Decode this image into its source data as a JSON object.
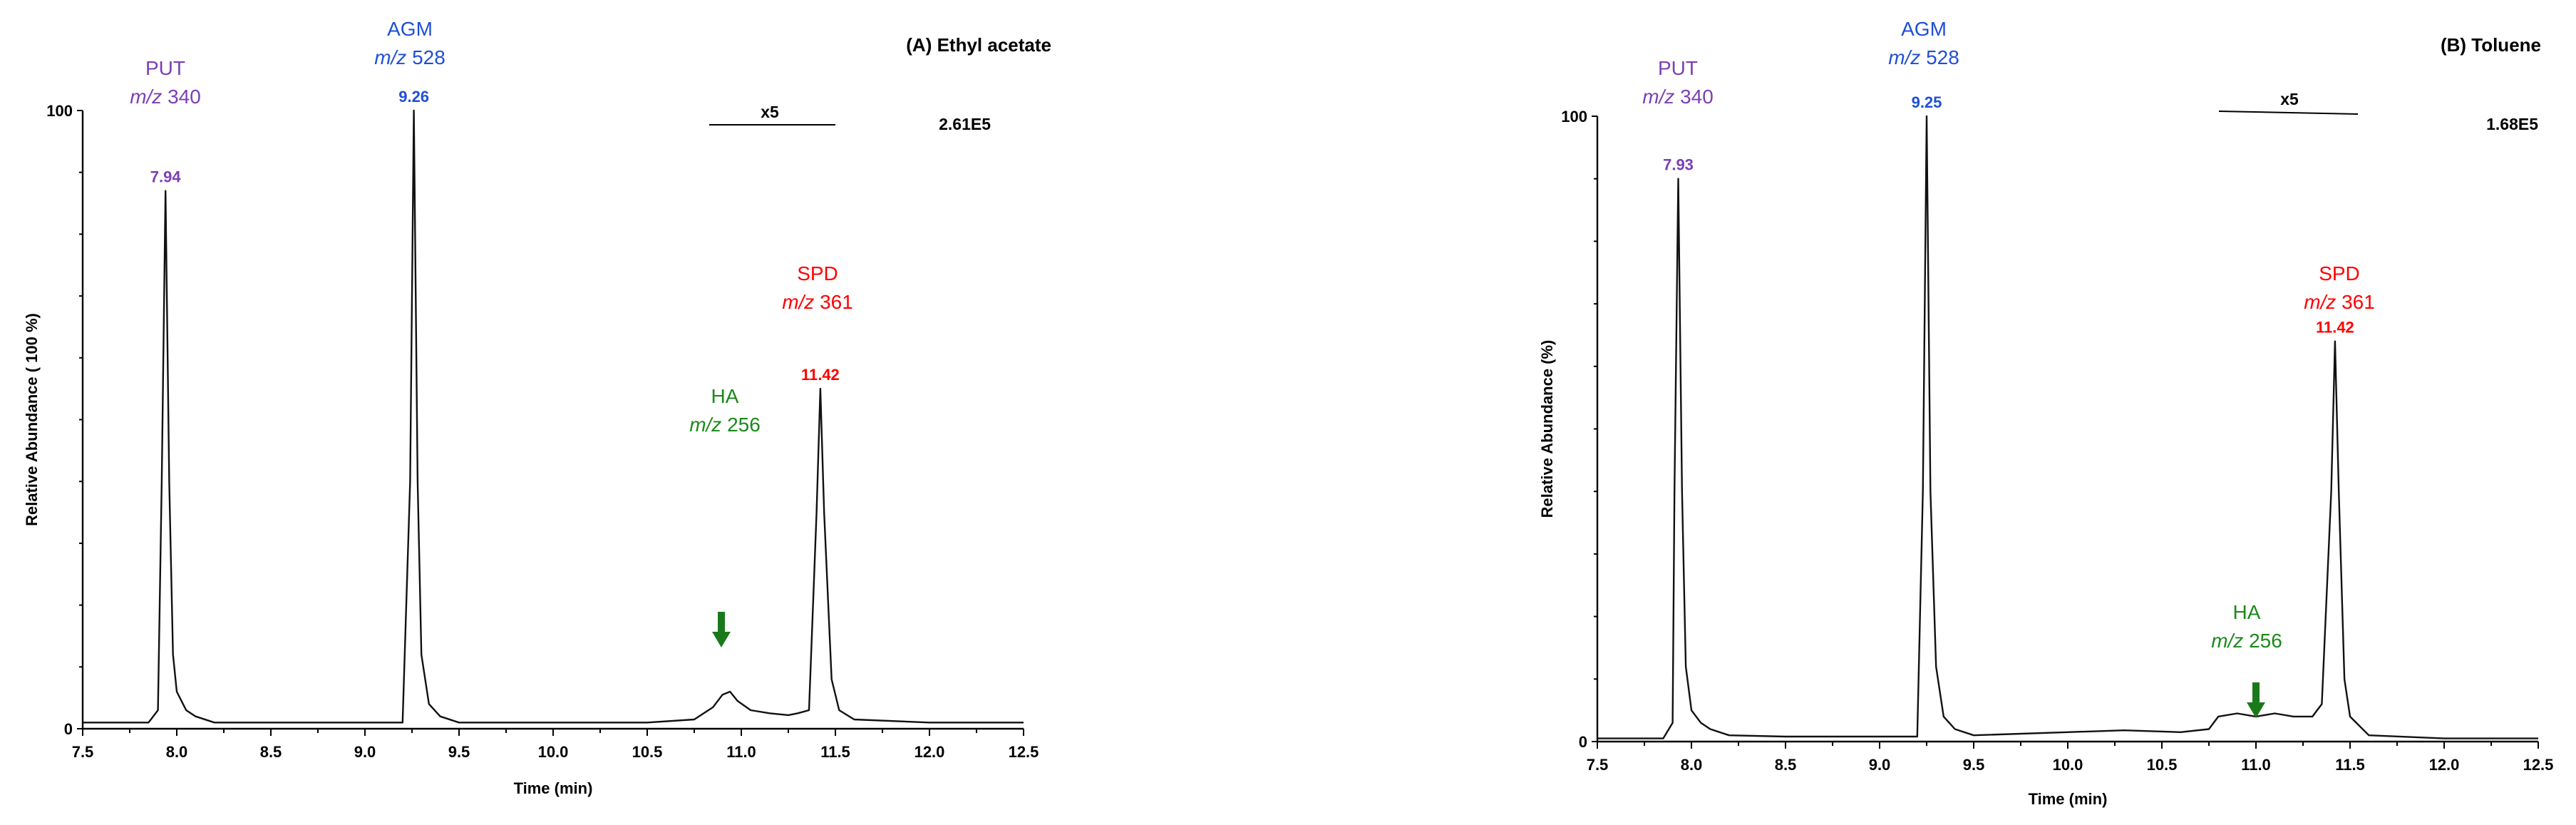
{
  "chart_data": [
    {
      "type": "line",
      "title": "(A) Ethyl acetate",
      "xlabel": "Time (min)",
      "ylabel": "Relative Abundance ( 100 %)",
      "xlim": [
        7.5,
        12.5
      ],
      "ylim": [
        0,
        100
      ],
      "x_ticks": [
        "7.5",
        "8.0",
        "8.5",
        "9.0",
        "9.5",
        "10.0",
        "10.5",
        "11.0",
        "11.5",
        "12.0",
        "12.5"
      ],
      "y_ticks": [
        "0",
        "100"
      ],
      "base_peak_intensity": "2.61E5",
      "magnification": {
        "label": "x5",
        "from": 10.75,
        "to": 11.5
      },
      "grid": false,
      "series": [
        {
          "x": [
            7.5,
            7.85,
            7.9,
            7.92,
            7.94,
            7.96,
            7.98,
            8.0,
            8.05,
            8.1,
            8.2,
            8.4,
            8.5,
            9.0,
            9.2,
            9.24,
            9.26,
            9.28,
            9.3,
            9.34,
            9.4,
            9.5,
            10.0,
            10.5,
            10.75,
            10.85,
            10.9,
            10.94,
            10.98,
            11.05,
            11.15,
            11.25,
            11.3,
            11.36,
            11.4,
            11.42,
            11.44,
            11.48,
            11.52,
            11.6,
            12.0,
            12.5
          ],
          "y": [
            1,
            1,
            3,
            40,
            87,
            40,
            12,
            6,
            3,
            2,
            1,
            1,
            1,
            1,
            1,
            40,
            100,
            40,
            12,
            4,
            2,
            1,
            1,
            1,
            1.5,
            3.5,
            5.5,
            6,
            4.5,
            3,
            2.5,
            2.2,
            2.5,
            3,
            35,
            55,
            35,
            8,
            3,
            1.5,
            1,
            1
          ]
        }
      ],
      "peaks": [
        {
          "rt": "7.94",
          "name": "PUT",
          "mz": "340"
        },
        {
          "rt": "9.26",
          "name": "AGM",
          "mz": "528"
        },
        {
          "rt": "11.42",
          "name": "SPD",
          "mz": "361"
        },
        {
          "name": "HA",
          "mz": "256",
          "rt_marker": 10.93
        }
      ]
    },
    {
      "type": "line",
      "title": "(B) Toluene",
      "xlabel": "Time (min)",
      "ylabel": "Relative Abundance (%)",
      "xlim": [
        7.5,
        12.5
      ],
      "ylim": [
        0,
        100
      ],
      "x_ticks": [
        "7.5",
        "8.0",
        "8.5",
        "9.0",
        "9.5",
        "10.0",
        "10.5",
        "11.0",
        "11.5",
        "12.0",
        "12.5"
      ],
      "y_ticks": [
        "0",
        "100"
      ],
      "base_peak_intensity": "1.68E5",
      "magnification": {
        "label": "x5",
        "from": 10.75,
        "to": 11.5
      },
      "grid": false,
      "series": [
        {
          "x": [
            7.5,
            7.85,
            7.9,
            7.91,
            7.93,
            7.95,
            7.97,
            8.0,
            8.05,
            8.1,
            8.2,
            8.5,
            9.0,
            9.2,
            9.23,
            9.25,
            9.27,
            9.3,
            9.34,
            9.4,
            9.5,
            10.0,
            10.3,
            10.6,
            10.75,
            10.8,
            10.9,
            11.0,
            11.1,
            11.2,
            11.3,
            11.35,
            11.4,
            11.42,
            11.44,
            11.47,
            11.5,
            11.6,
            12.0,
            12.5
          ],
          "y": [
            0.5,
            0.5,
            3,
            40,
            90,
            40,
            12,
            5,
            3,
            2,
            1,
            0.8,
            0.8,
            0.8,
            40,
            100,
            40,
            12,
            4,
            2,
            1,
            1.5,
            1.8,
            1.5,
            2,
            4,
            4.5,
            4,
            4.5,
            4,
            4,
            6,
            40,
            64,
            40,
            10,
            4,
            1,
            0.5,
            0.5
          ]
        }
      ],
      "peaks": [
        {
          "rt": "7.93",
          "name": "PUT",
          "mz": "340"
        },
        {
          "rt": "9.25",
          "name": "AGM",
          "mz": "528"
        },
        {
          "rt": "11.42",
          "name": "SPD",
          "mz": "361"
        },
        {
          "name": "HA",
          "mz": "256",
          "rt_marker": 10.92
        }
      ]
    }
  ],
  "labels": {
    "mz_prefix": "m/z"
  },
  "colors": {
    "PUT": "#7b3fb5",
    "AGM": "#1f4fd6",
    "SPD": "#ff0000",
    "HA": "#1a8a1a",
    "arrow": "#1a7a1a"
  }
}
